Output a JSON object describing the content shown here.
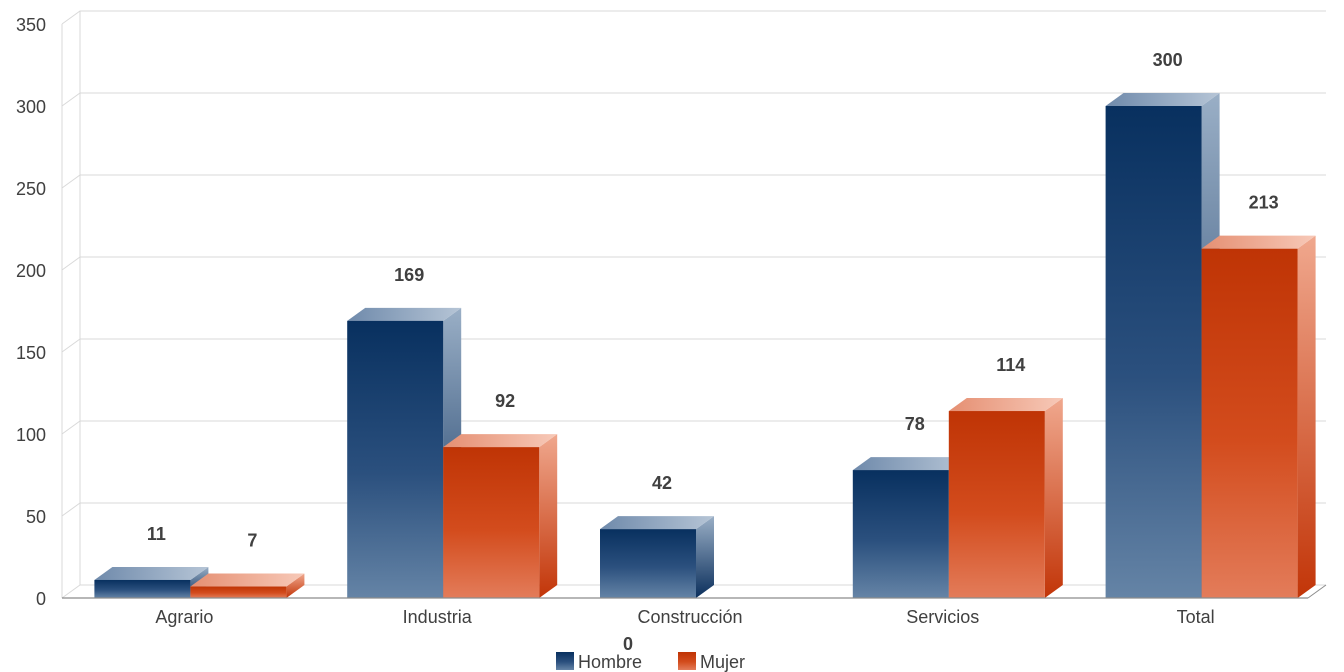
{
  "chart_data": {
    "type": "bar",
    "categories": [
      "Agrario",
      "Industria",
      "Construcción",
      "Servicios",
      "Total"
    ],
    "series": [
      {
        "name": "Hombre",
        "values": [
          11,
          169,
          42,
          78,
          300
        ],
        "color": "#0f3464",
        "labels": [
          "11",
          "169",
          "42",
          "78",
          "300"
        ]
      },
      {
        "name": "Mujer",
        "values": [
          7,
          92,
          0,
          114,
          213
        ],
        "color": "#c9380a",
        "labels": [
          "7",
          "92",
          "0",
          "114",
          "213"
        ]
      }
    ],
    "ylim": [
      0,
      350
    ],
    "yticks": [
      0,
      50,
      100,
      150,
      200,
      250,
      300,
      350
    ],
    "ytick_labels": [
      "0",
      "50",
      "100",
      "150",
      "200",
      "250",
      "300",
      "350"
    ],
    "title": "",
    "xlabel": "",
    "ylabel": "",
    "grid": true,
    "legend_position": "bottom-center"
  }
}
